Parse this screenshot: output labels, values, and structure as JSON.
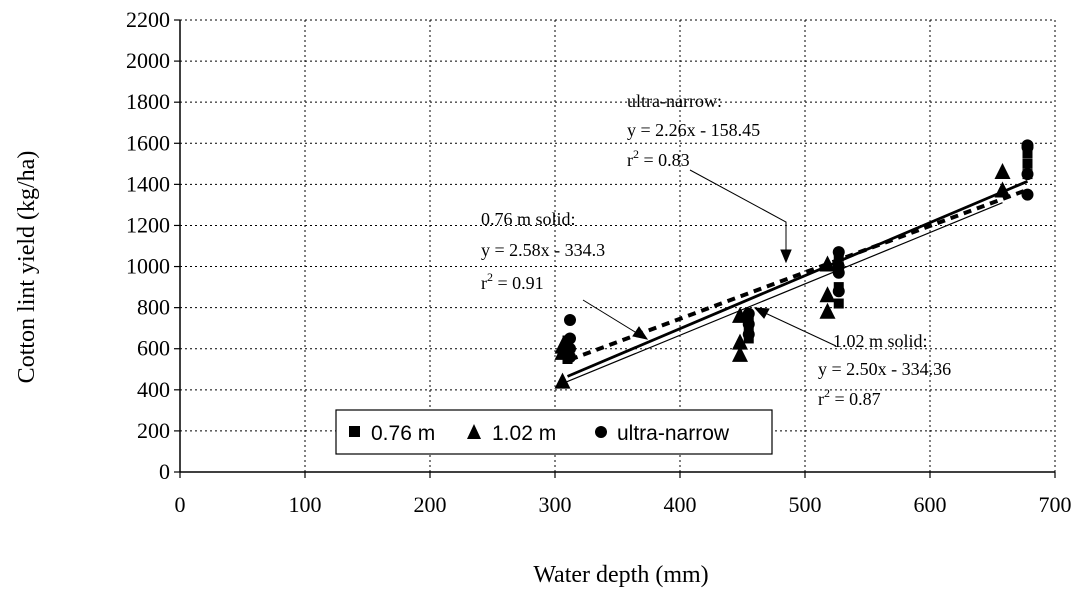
{
  "chart_data": {
    "type": "scatter",
    "title": "",
    "xlabel": "Water depth (mm)",
    "ylabel": "Cotton lint yield (kg/ha)",
    "xlim": [
      0,
      700
    ],
    "ylim": [
      0,
      2200
    ],
    "xticks": [
      0,
      100,
      200,
      300,
      400,
      500,
      600,
      700
    ],
    "yticks": [
      0,
      200,
      400,
      600,
      800,
      1000,
      1200,
      1400,
      1600,
      1800,
      2000,
      2200
    ],
    "grid": true,
    "legend_position": "lower-left",
    "series": [
      {
        "name": "0.76 m",
        "marker": "square",
        "points": [
          [
            310,
            550
          ],
          [
            310,
            600
          ],
          [
            310,
            640
          ],
          [
            455,
            650
          ],
          [
            455,
            700
          ],
          [
            455,
            740
          ],
          [
            527,
            820
          ],
          [
            527,
            900
          ],
          [
            527,
            1000
          ],
          [
            527,
            1050
          ],
          [
            678,
            1450
          ],
          [
            678,
            1500
          ],
          [
            678,
            1550
          ]
        ]
      },
      {
        "name": "1.02 m",
        "marker": "triangle",
        "points": [
          [
            306,
            440
          ],
          [
            306,
            580
          ],
          [
            306,
            610
          ],
          [
            448,
            570
          ],
          [
            448,
            630
          ],
          [
            448,
            760
          ],
          [
            518,
            780
          ],
          [
            518,
            860
          ],
          [
            518,
            1010
          ],
          [
            658,
            1370
          ],
          [
            658,
            1460
          ]
        ]
      },
      {
        "name": "ultra-narrow",
        "marker": "circle",
        "points": [
          [
            312,
            560
          ],
          [
            312,
            600
          ],
          [
            312,
            650
          ],
          [
            312,
            740
          ],
          [
            455,
            670
          ],
          [
            455,
            720
          ],
          [
            455,
            770
          ],
          [
            527,
            880
          ],
          [
            527,
            970
          ],
          [
            527,
            1000
          ],
          [
            527,
            1070
          ],
          [
            678,
            1350
          ],
          [
            678,
            1450
          ],
          [
            678,
            1580
          ],
          [
            678,
            1590
          ]
        ]
      }
    ],
    "fits": [
      {
        "series": "0.76 m",
        "x_range": [
          310,
          678
        ],
        "slope": 2.58,
        "intercept": -334.3,
        "style": "thick-solid"
      },
      {
        "series": "1.02 m",
        "x_range": [
          306,
          658
        ],
        "slope": 2.5,
        "intercept": -334.36,
        "style": "thin-solid"
      },
      {
        "series": "ultra-narrow",
        "x_range": [
          312,
          678
        ],
        "slope": 2.26,
        "intercept": -158.45,
        "style": "dashed"
      }
    ],
    "annotations": [
      {
        "id": "ultra-narrow",
        "label": "ultra-narrow:",
        "equation": "y = 2.26x - 158.45",
        "r2_prefix": "r",
        "r2_sup": "2",
        "r2_value": " = 0.83"
      },
      {
        "id": "solid-076",
        "label": "0.76 m solid:",
        "equation": "y = 2.58x - 334.3",
        "r2_prefix": "r",
        "r2_sup": "2",
        "r2_value": " = 0.91"
      },
      {
        "id": "solid-102",
        "label": "1.02 m solid:",
        "equation": "y = 2.50x - 334.36",
        "r2_prefix": "r",
        "r2_sup": "2",
        "r2_value": " = 0.87"
      }
    ]
  }
}
